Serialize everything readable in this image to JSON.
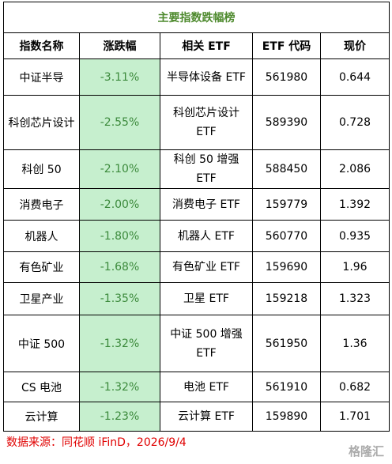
{
  "header": {
    "title": "主要指数跌幅榜"
  },
  "table": {
    "columns": [
      "指数名称",
      "涨跌幅",
      "相关 ETF",
      "ETF 代码",
      "现价"
    ],
    "rows": [
      [
        "中证半导",
        "-3.11%",
        "半导体设备 ETF",
        "561980",
        "0.644"
      ],
      [
        "科创芯片设计",
        "-2.55%",
        "科创芯片设计 ETF",
        "589390",
        "0.728"
      ],
      [
        "科创 50",
        "-2.10%",
        "科创 50 增强 ETF",
        "588450",
        "2.086"
      ],
      [
        "消费电子",
        "-2.00%",
        "消费电子 ETF",
        "159779",
        "1.392"
      ],
      [
        "机器人",
        "-1.80%",
        "机器人 ETF",
        "560770",
        "0.935"
      ],
      [
        "有色矿业",
        "-1.68%",
        "有色矿业 ETF",
        "159690",
        "1.96"
      ],
      [
        "卫星产业",
        "-1.35%",
        "卫星 ETF",
        "159218",
        "1.323"
      ],
      [
        "中证 500",
        "-1.32%",
        "中证 500 增强 ETF",
        "561950",
        "1.36"
      ],
      [
        "CS 电池",
        "-1.32%",
        "电池 ETF",
        "561910",
        "0.682"
      ],
      [
        "云计算",
        "-1.23%",
        "云计算 ETF",
        "159890",
        "1.701"
      ]
    ]
  },
  "footer": {
    "source": "数据来源：同花顺 iFinD，2026/9/4",
    "watermark": "格隆汇"
  }
}
